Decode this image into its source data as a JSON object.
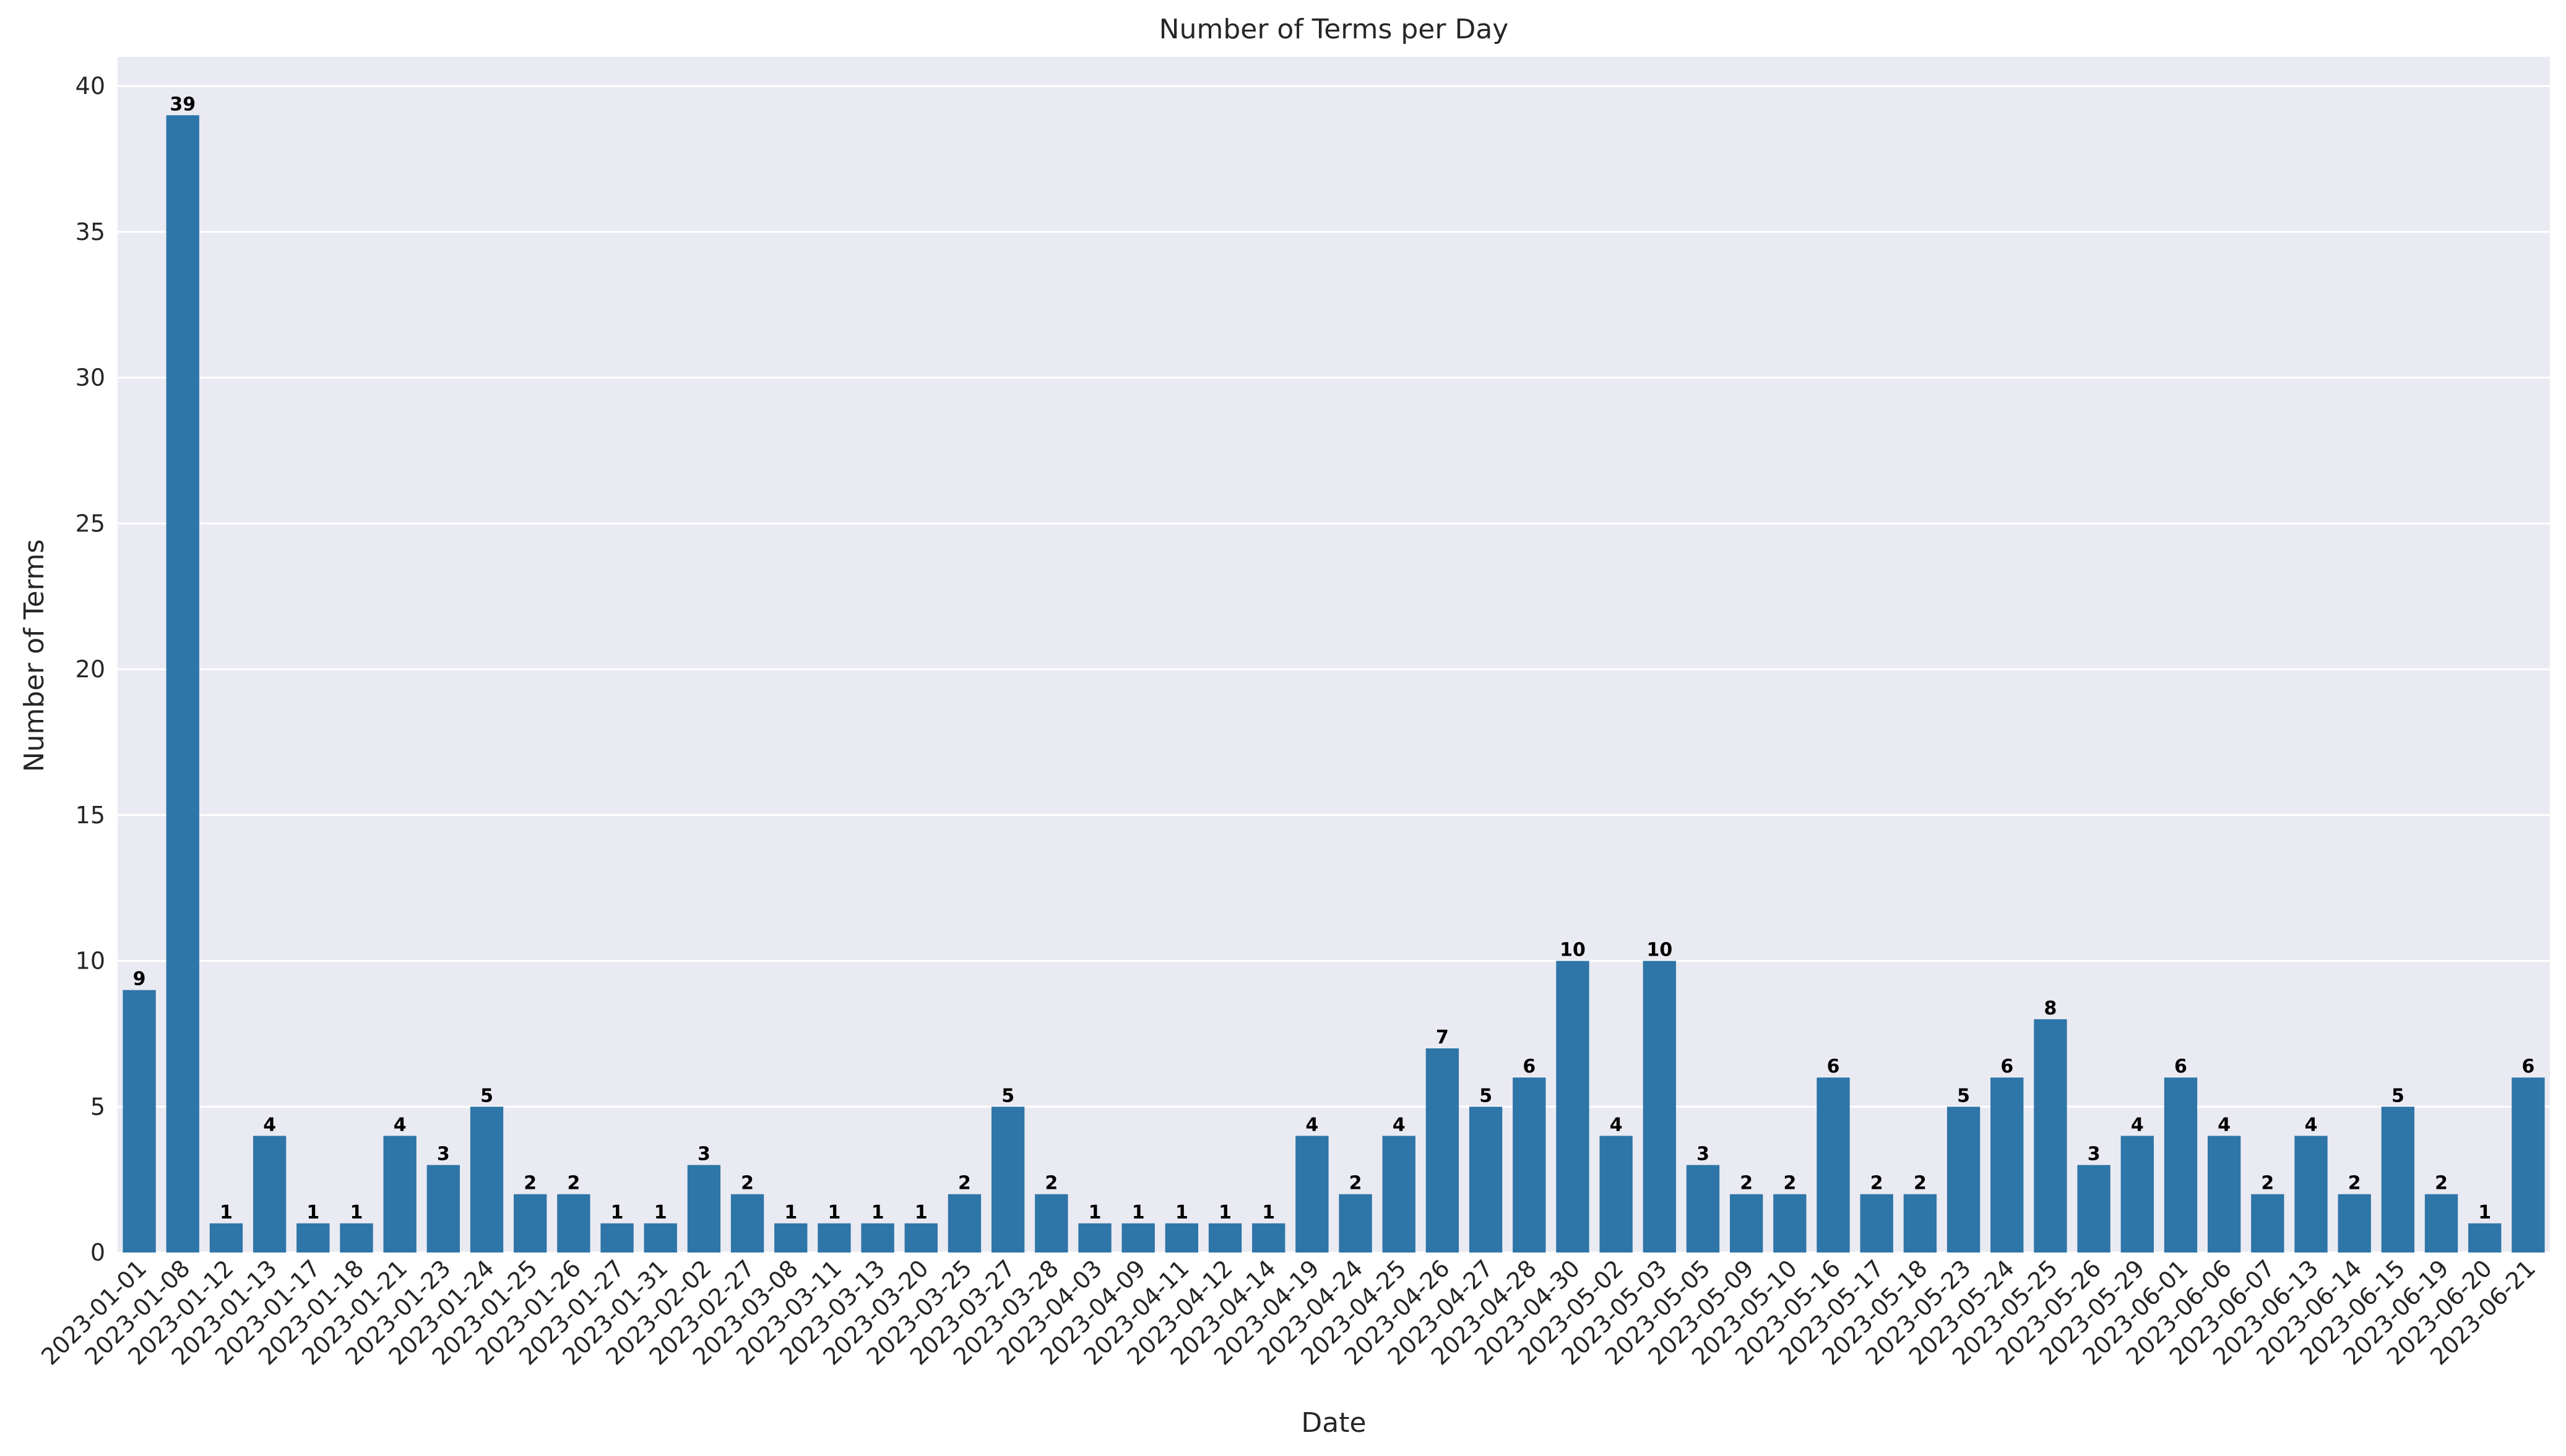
{
  "chart_data": {
    "type": "bar",
    "title": "Number of Terms per Day",
    "xlabel": "Date",
    "ylabel": "Number of Terms",
    "ylim": [
      0,
      41
    ],
    "yticks": [
      0,
      5,
      10,
      15,
      20,
      25,
      30,
      35,
      40
    ],
    "grid": true,
    "legend": "none",
    "bar_color": "#2e75a8",
    "background_color": "#eaeaf2",
    "categories": [
      "2023-01-01",
      "2023-01-08",
      "2023-01-12",
      "2023-01-13",
      "2023-01-17",
      "2023-01-18",
      "2023-01-21",
      "2023-01-23",
      "2023-01-24",
      "2023-01-25",
      "2023-01-26",
      "2023-01-27",
      "2023-01-31",
      "2023-02-02",
      "2023-02-27",
      "2023-03-08",
      "2023-03-11",
      "2023-03-13",
      "2023-03-20",
      "2023-03-25",
      "2023-03-27",
      "2023-03-28",
      "2023-04-03",
      "2023-04-09",
      "2023-04-11",
      "2023-04-12",
      "2023-04-14",
      "2023-04-19",
      "2023-04-24",
      "2023-04-25",
      "2023-04-26",
      "2023-04-27",
      "2023-04-28",
      "2023-04-30",
      "2023-05-02",
      "2023-05-03",
      "2023-05-05",
      "2023-05-09",
      "2023-05-10",
      "2023-05-16",
      "2023-05-17",
      "2023-05-18",
      "2023-05-23",
      "2023-05-24",
      "2023-05-25",
      "2023-05-26",
      "2023-05-29",
      "2023-06-01",
      "2023-06-06",
      "2023-06-07",
      "2023-06-13",
      "2023-06-14",
      "2023-06-15",
      "2023-06-19",
      "2023-06-20",
      "2023-06-21"
    ],
    "values": [
      9,
      39,
      1,
      4,
      1,
      1,
      4,
      3,
      5,
      2,
      2,
      1,
      1,
      3,
      2,
      1,
      1,
      1,
      1,
      2,
      5,
      2,
      1,
      1,
      1,
      1,
      1,
      4,
      2,
      4,
      7,
      5,
      6,
      10,
      4,
      10,
      3,
      2,
      2,
      6,
      2,
      2,
      5,
      6,
      8,
      3,
      4,
      6,
      4,
      2,
      4,
      2,
      5,
      2,
      1,
      6
    ]
  }
}
